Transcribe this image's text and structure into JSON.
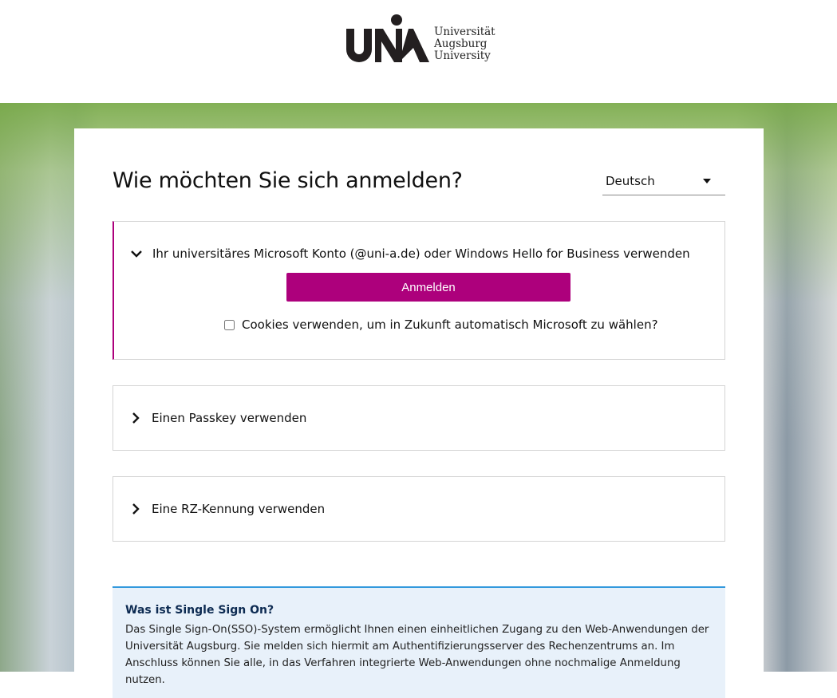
{
  "header": {
    "logo_text_lines": [
      "Universität",
      "Augsburg",
      "University"
    ],
    "logo_mark": "UNIA"
  },
  "main": {
    "title": "Wie möchten Sie sich anmelden?",
    "language": {
      "selected": "Deutsch"
    },
    "panels": [
      {
        "label": "Ihr universitäres Microsoft Konto (@uni-a.de) oder Windows Hello for Business verwenden",
        "expanded": true,
        "button_label": "Anmelden",
        "checkbox_label": "Cookies verwenden, um in Zukunft automatisch Microsoft zu wählen?",
        "checkbox_checked": false
      },
      {
        "label": "Einen Passkey verwenden",
        "expanded": false
      },
      {
        "label": "Eine RZ-Kennung verwenden",
        "expanded": false
      }
    ],
    "info": {
      "title": "Was ist Single Sign On?",
      "text": "Das Single Sign-On(SSO)-System ermöglicht Ihnen einen einheitlichen Zugang zu den Web-Anwendungen der Universität Augsburg. Sie melden sich hiermit am Authentifizierungsserver des Rechenzentrums an. Im Anschluss können Sie alle, in das Verfahren integrierte Web-Anwendungen ohne nochmalige Anmeldung nutzen."
    }
  },
  "colors": {
    "accent": "#ad007c",
    "info_border": "#3399dd",
    "info_bg": "#e8f1fa"
  }
}
